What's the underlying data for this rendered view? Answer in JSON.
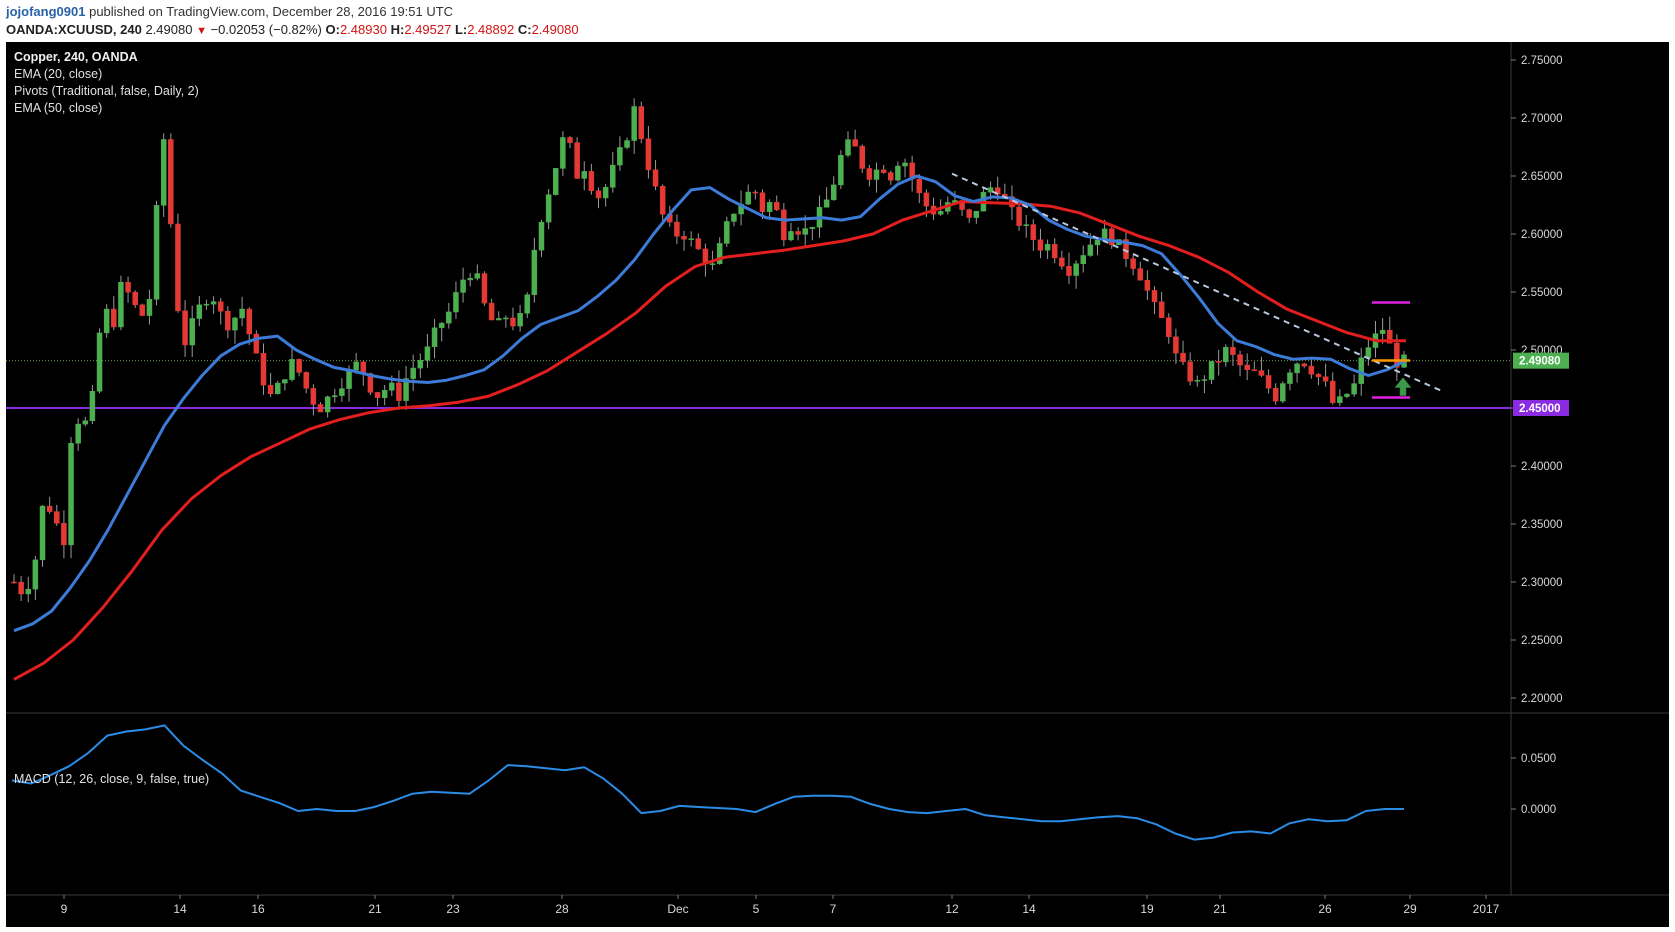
{
  "header": {
    "author": "jojofang0901",
    "published_text": "published on TradingView.com, December 28, 2016 19:51 UTC",
    "symbol": "OANDA:XCUUSD, 240",
    "last": "2.49080",
    "change": "−0.02053 (−0.82%)",
    "o_label": "O:",
    "o_value": "2.48930",
    "h_label": "H:",
    "h_value": "2.49527",
    "l_label": "L:",
    "l_value": "2.48892",
    "c_label": "C:",
    "c_value": "2.49080"
  },
  "legend": {
    "title": "Copper, 240, OANDA",
    "ema20": "EMA (20, close)",
    "pivots": "Pivots (Traditional, false, Daily, 2)",
    "ema50": "EMA (50, close)",
    "macd": "MACD (12, 26, close, 9, false, true)"
  },
  "colors": {
    "background": "#000000",
    "up_candle": "#4caf50",
    "down_candle": "#e53935",
    "ema20": "#3d7bd8",
    "ema50": "#e31e1e",
    "macd": "#2b8ce6",
    "support": "#8a2be2",
    "pivot_r": "#e020e0",
    "pivot_p": "#ff9800",
    "trendline": "#b8c8e0",
    "last_price": "#4caf50",
    "arrow": "#3a9a4a"
  },
  "chart_data": [
    {
      "type": "candlestick",
      "title": "Copper, 240, OANDA",
      "ylim": [
        2.18,
        2.77
      ],
      "y_ticks": [
        "2.75000",
        "2.70000",
        "2.65000",
        "2.60000",
        "2.55000",
        "2.50000",
        "2.45000",
        "2.40000",
        "2.35000",
        "2.30000",
        "2.25000",
        "2.20000"
      ],
      "x_ticks": [
        "9",
        "14",
        "16",
        "21",
        "23",
        "28",
        "Dec",
        "5",
        "7",
        "12",
        "14",
        "19",
        "21",
        "26",
        "29",
        "2017"
      ],
      "last_price": 2.4908,
      "last_price_label": "2.49080",
      "support_level": 2.45,
      "support_label": "2.45000",
      "pivots": {
        "r1": 2.541,
        "p": 2.491,
        "s1": 2.459
      },
      "trendline": [
        [
          0,
          2.652
        ],
        [
          1,
          2.465
        ]
      ],
      "annotation": "up-arrow",
      "candle_count": 196,
      "ohlc_path": [
        2.3,
        2.29,
        2.31,
        2.37,
        2.36,
        2.33,
        2.45,
        2.43,
        2.46,
        2.54,
        2.52,
        2.56,
        2.54,
        2.53,
        2.55,
        2.7,
        2.6,
        2.5,
        2.52,
        2.54,
        2.55,
        2.53,
        2.52,
        2.54,
        2.51,
        2.48,
        2.46,
        2.47,
        2.49,
        2.48,
        2.46,
        2.45,
        2.46,
        2.47,
        2.48,
        2.49,
        2.47,
        2.46,
        2.47,
        2.46,
        2.48,
        2.49,
        2.5,
        2.52,
        2.53,
        2.55,
        2.57,
        2.56,
        2.53,
        2.52,
        2.53,
        2.52,
        2.54,
        2.6,
        2.63,
        2.66,
        2.69,
        2.65,
        2.66,
        2.63,
        2.64,
        2.66,
        2.68,
        2.71,
        2.67,
        2.64,
        2.61,
        2.6,
        2.6,
        2.59,
        2.58,
        2.57,
        2.6,
        2.62,
        2.63,
        2.64,
        2.62,
        2.63,
        2.6,
        2.61,
        2.6,
        2.61,
        2.62,
        2.64,
        2.67,
        2.68,
        2.66,
        2.65,
        2.66,
        2.65,
        2.67,
        2.65,
        2.63,
        2.62,
        2.62,
        2.63,
        2.62,
        2.61,
        2.63,
        2.64,
        2.64,
        2.62,
        2.61,
        2.6,
        2.59,
        2.59,
        2.58,
        2.57,
        2.58,
        2.59,
        2.6,
        2.6,
        2.59,
        2.58,
        2.57,
        2.55,
        2.53,
        2.52,
        2.49,
        2.48,
        2.47,
        2.48,
        2.49,
        2.5,
        2.49,
        2.48,
        2.48,
        2.47,
        2.46,
        2.48,
        2.49,
        2.49,
        2.48,
        2.47,
        2.45,
        2.46,
        2.47,
        2.5,
        2.51,
        2.52,
        2.49,
        2.49
      ],
      "ema20_values": [
        2.258,
        2.264,
        2.275,
        2.295,
        2.318,
        2.345,
        2.375,
        2.405,
        2.435,
        2.458,
        2.478,
        2.495,
        2.505,
        2.51,
        2.512,
        2.5,
        2.492,
        2.485,
        2.482,
        2.478,
        2.475,
        2.473,
        2.472,
        2.474,
        2.478,
        2.483,
        2.495,
        2.51,
        2.522,
        2.528,
        2.534,
        2.546,
        2.56,
        2.578,
        2.6,
        2.62,
        2.638,
        2.64,
        2.63,
        2.622,
        2.614,
        2.612,
        2.613,
        2.614,
        2.612,
        2.615,
        2.63,
        2.643,
        2.65,
        2.645,
        2.633,
        2.628,
        2.632,
        2.631,
        2.625,
        2.612,
        2.604,
        2.598,
        2.595,
        2.593,
        2.59,
        2.583,
        2.565,
        2.545,
        2.523,
        2.508,
        2.503,
        2.496,
        2.492,
        2.493,
        2.492,
        2.484,
        2.478,
        2.483,
        2.491
      ],
      "ema50_values": [
        2.216,
        2.23,
        2.25,
        2.278,
        2.31,
        2.345,
        2.372,
        2.392,
        2.408,
        2.42,
        2.432,
        2.44,
        2.446,
        2.45,
        2.452,
        2.455,
        2.46,
        2.47,
        2.482,
        2.498,
        2.514,
        2.532,
        2.555,
        2.572,
        2.58,
        2.583,
        2.586,
        2.59,
        2.594,
        2.6,
        2.612,
        2.62,
        2.628,
        2.627,
        2.626,
        2.624,
        2.618,
        2.608,
        2.598,
        2.59,
        2.58,
        2.567,
        2.55,
        2.535,
        2.525,
        2.515,
        2.508,
        2.508
      ],
      "macd_ylim": [
        -0.06,
        0.11
      ],
      "macd_ticks": [
        "0.0500",
        "0.0000"
      ],
      "macd_values": [
        0.028,
        0.025,
        0.033,
        0.042,
        0.055,
        0.072,
        0.076,
        0.078,
        0.082,
        0.062,
        0.048,
        0.035,
        0.018,
        0.012,
        0.006,
        -0.002,
        0.0,
        -0.002,
        -0.002,
        0.002,
        0.008,
        0.015,
        0.017,
        0.016,
        0.015,
        0.028,
        0.043,
        0.042,
        0.04,
        0.038,
        0.041,
        0.03,
        0.015,
        -0.004,
        -0.002,
        0.003,
        0.002,
        0.001,
        0.0,
        -0.003,
        0.005,
        0.012,
        0.013,
        0.013,
        0.012,
        0.005,
        0.0,
        -0.003,
        -0.004,
        -0.002,
        0.0,
        -0.006,
        -0.008,
        -0.01,
        -0.012,
        -0.012,
        -0.01,
        -0.008,
        -0.007,
        -0.009,
        -0.015,
        -0.024,
        -0.03,
        -0.028,
        -0.023,
        -0.022,
        -0.024,
        -0.014,
        -0.01,
        -0.012,
        -0.011,
        -0.002,
        0.0,
        0.0
      ]
    }
  ]
}
